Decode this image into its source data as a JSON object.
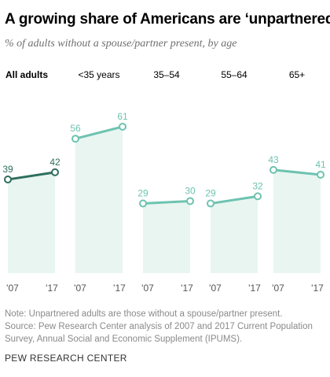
{
  "header": {
    "title": "A growing share of Americans are ‘unpartnered’",
    "subtitle": "% of adults without a spouse/partner present, by age"
  },
  "colors": {
    "all_adults_line": "#2f6e5e",
    "age_line": "#6ec3b0",
    "area_fill": "#e8f5f1"
  },
  "chart_data": {
    "type": "line",
    "ylim": [
      0,
      70
    ],
    "x": [
      "'07",
      "'17"
    ],
    "panels": [
      {
        "label": "All adults",
        "emphasis": true,
        "values": [
          39,
          42
        ]
      },
      {
        "label": "<35 years",
        "values": [
          56,
          61
        ]
      },
      {
        "label": "35–54",
        "values": [
          29,
          30
        ]
      },
      {
        "label": "55–64",
        "values": [
          29,
          32
        ]
      },
      {
        "label": "65+",
        "values": [
          43,
          41
        ]
      }
    ]
  },
  "footer": {
    "note": "Note: Unpartnered adults are those without a spouse/partner present.",
    "source": "Source: Pew Research Center analysis of 2007 and 2017 Current Population Survey, Annual Social and Economic Supplement (IPUMS).",
    "org": "PEW RESEARCH CENTER"
  }
}
